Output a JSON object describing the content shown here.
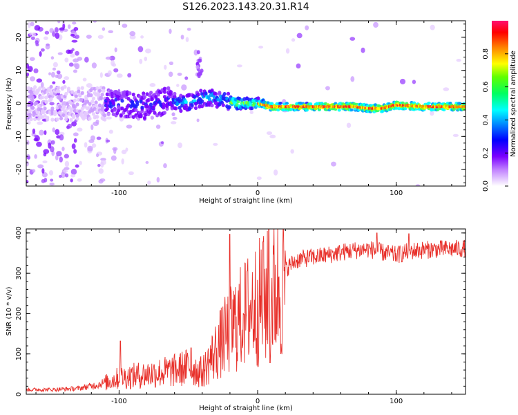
{
  "title": "S126.2023.143.20.31.R14",
  "chart_data": [
    {
      "type": "heatmap",
      "xlabel": "Height of straight line (km)",
      "ylabel": "Frequency (Hz)",
      "xlim": [
        -167,
        150
      ],
      "ylim": [
        -25,
        25
      ],
      "xticks": [
        -100,
        0,
        100
      ],
      "yticks": [
        -20,
        -10,
        0,
        10,
        20
      ],
      "grid": false,
      "colorbar": {
        "label": "Normalized spectral amplitude",
        "ticks": [
          0.0,
          0.2,
          0.4,
          0.6,
          0.8
        ],
        "range": [
          0,
          1
        ]
      },
      "band": {
        "description": "spectral energy concentrated near 0 Hz; scattered low amplitude noise at heights below about -60 km; narrow high-amplitude line above 0 km",
        "center_hz": [
          [
            -167,
            0
          ],
          [
            -130,
            0
          ],
          [
            -100,
            0
          ],
          [
            -80,
            -1
          ],
          [
            -65,
            1
          ],
          [
            -55,
            0
          ],
          [
            -45,
            1
          ],
          [
            -35,
            2
          ],
          [
            -25,
            1
          ],
          [
            -15,
            0
          ],
          [
            -5,
            0
          ],
          [
            0,
            0
          ],
          [
            10,
            -1
          ],
          [
            40,
            -1
          ],
          [
            70,
            -1
          ],
          [
            80,
            -1.5
          ],
          [
            90,
            -1.5
          ],
          [
            100,
            -0.5
          ],
          [
            120,
            -1
          ],
          [
            150,
            -1
          ]
        ],
        "isolated_peak": {
          "x": -42,
          "y": 12
        }
      }
    },
    {
      "type": "line",
      "xlabel": "Height of straight line (km)",
      "ylabel": "SNR (10 * v/v)",
      "xlim": [
        -167,
        150
      ],
      "ylim": [
        0,
        410
      ],
      "xticks": [
        -100,
        0,
        100
      ],
      "yticks": [
        0,
        100,
        200,
        300,
        400
      ],
      "grid": false,
      "color": "#e8302a",
      "envelope": [
        [
          -167,
          12
        ],
        [
          -150,
          12
        ],
        [
          -130,
          15
        ],
        [
          -115,
          25
        ],
        [
          -100,
          45
        ],
        [
          -90,
          50
        ],
        [
          -80,
          55
        ],
        [
          -70,
          60
        ],
        [
          -60,
          65
        ],
        [
          -50,
          75
        ],
        [
          -40,
          60
        ],
        [
          -35,
          90
        ],
        [
          -30,
          120
        ],
        [
          -25,
          150
        ],
        [
          -20,
          175
        ],
        [
          -15,
          200
        ],
        [
          -10,
          215
        ],
        [
          -5,
          240
        ],
        [
          0,
          250
        ],
        [
          5,
          260
        ],
        [
          10,
          275
        ],
        [
          15,
          290
        ],
        [
          20,
          310
        ],
        [
          25,
          325
        ],
        [
          30,
          335
        ],
        [
          40,
          340
        ],
        [
          50,
          345
        ],
        [
          60,
          352
        ],
        [
          70,
          357
        ],
        [
          80,
          360
        ],
        [
          90,
          352
        ],
        [
          100,
          345
        ],
        [
          110,
          355
        ],
        [
          120,
          358
        ],
        [
          130,
          360
        ],
        [
          140,
          360
        ],
        [
          150,
          362
        ]
      ],
      "spikes": [
        {
          "x": -99,
          "y": 132
        },
        {
          "x": -48,
          "y": 115
        },
        {
          "x": -20,
          "y": 397
        },
        {
          "x": -10,
          "y": 198
        },
        {
          "x": 4,
          "y": 378
        },
        {
          "x": 8,
          "y": 412
        },
        {
          "x": 9,
          "y": 78
        },
        {
          "x": 86,
          "y": 400
        },
        {
          "x": 109,
          "y": 398
        }
      ]
    }
  ]
}
